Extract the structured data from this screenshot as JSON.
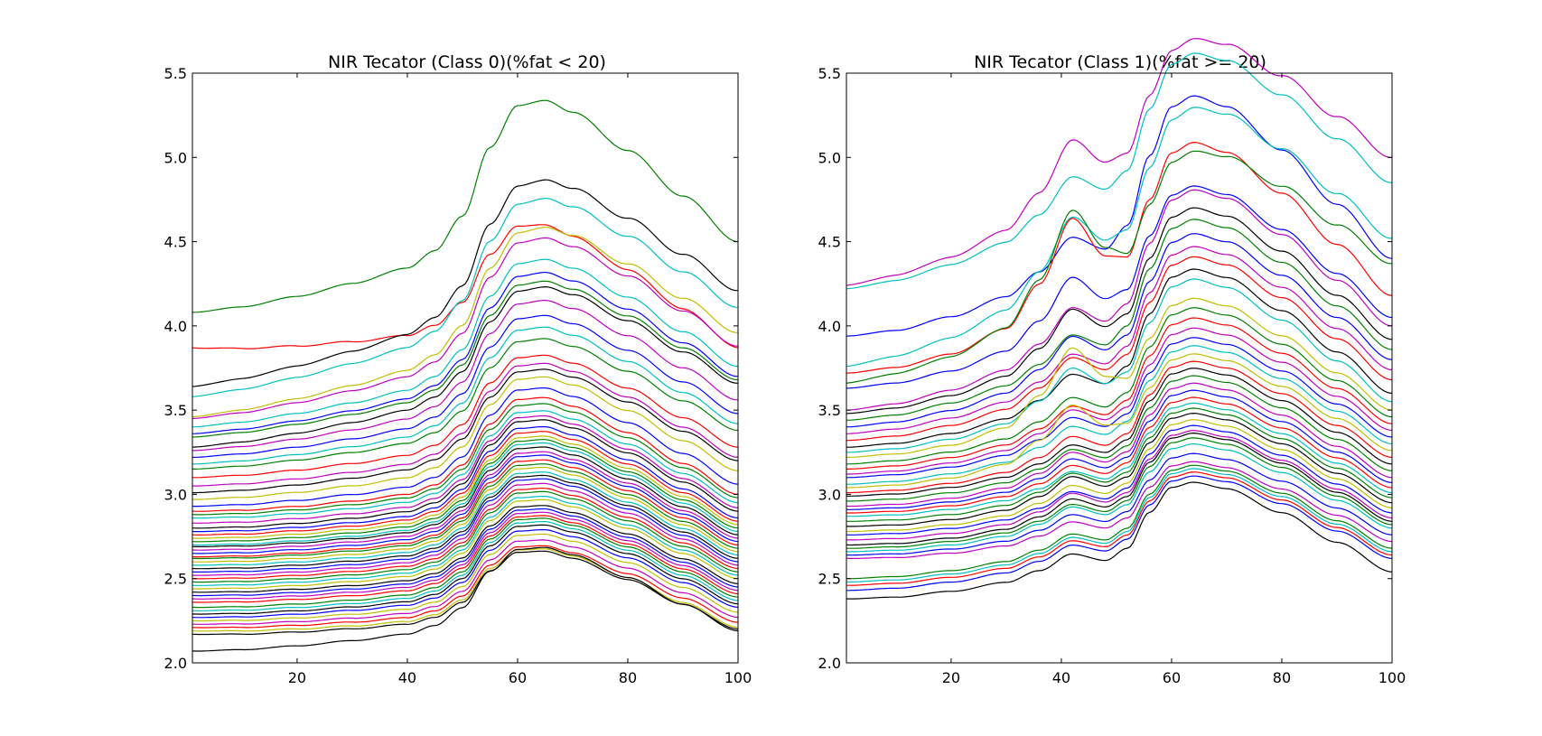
{
  "chart_data": [
    {
      "type": "line",
      "title": "NIR Tecator (Class 0)(%fat < 20)",
      "xlabel": "",
      "ylabel": "",
      "xlim": [
        1,
        100
      ],
      "ylim": [
        2.0,
        5.5
      ],
      "xticks": [
        "20",
        "40",
        "60",
        "80",
        "100"
      ],
      "yticks": [
        "2.0",
        "2.5",
        "3.0",
        "3.5",
        "4.0",
        "4.5",
        "5.0",
        "5.5"
      ],
      "grid": false,
      "legend": "none",
      "curve_shape": {
        "note": "absorbance spectra; each series follows same profile shape",
        "profile_x": [
          1,
          10,
          20,
          30,
          40,
          45,
          50,
          55,
          60,
          65,
          70,
          80,
          90,
          100
        ],
        "profile_rel": [
          0.0,
          0.02,
          0.06,
          0.11,
          0.17,
          0.24,
          0.38,
          0.66,
          0.83,
          0.85,
          0.8,
          0.64,
          0.45,
          0.26
        ]
      },
      "series": [
        {
          "start": 4.08,
          "peak": 5.31,
          "end": 4.5,
          "color": "#008000"
        },
        {
          "start": 3.87,
          "peak": 4.78,
          "end": 3.87,
          "color": "#ff0000"
        },
        {
          "start": 3.64,
          "peak": 4.71,
          "end": 4.21,
          "color": "#000000"
        },
        {
          "start": 3.58,
          "peak": 4.62,
          "end": 4.11,
          "color": "#00bfbf"
        },
        {
          "start": 3.46,
          "peak": 4.46,
          "end": 3.96,
          "color": "#bfbf00"
        },
        {
          "start": 3.45,
          "peak": 4.44,
          "end": 3.88,
          "color": "#bf00bf"
        },
        {
          "start": 3.4,
          "peak": 4.35,
          "end": 3.76,
          "color": "#00bfbf"
        },
        {
          "start": 3.36,
          "peak": 4.28,
          "end": 3.7,
          "color": "#0000ff"
        },
        {
          "start": 3.34,
          "peak": 4.22,
          "end": 3.68,
          "color": "#008000"
        },
        {
          "start": 3.28,
          "peak": 4.16,
          "end": 3.66,
          "color": "#000000"
        },
        {
          "start": 3.26,
          "peak": 4.13,
          "end": 3.56,
          "color": "#bf00bf"
        },
        {
          "start": 3.22,
          "peak": 4.06,
          "end": 3.48,
          "color": "#0000ff"
        },
        {
          "start": 3.18,
          "peak": 4.0,
          "end": 3.42,
          "color": "#00bfbf"
        },
        {
          "start": 3.15,
          "peak": 3.93,
          "end": 3.38,
          "color": "#008000"
        },
        {
          "start": 3.1,
          "peak": 3.86,
          "end": 3.28,
          "color": "#ff0000"
        },
        {
          "start": 3.05,
          "peak": 3.82,
          "end": 3.22,
          "color": "#bf00bf"
        },
        {
          "start": 3.01,
          "peak": 3.77,
          "end": 3.2,
          "color": "#000000"
        },
        {
          "start": 2.97,
          "peak": 3.74,
          "end": 3.14,
          "color": "#bfbf00"
        },
        {
          "start": 2.93,
          "peak": 3.7,
          "end": 3.06,
          "color": "#0000ff"
        },
        {
          "start": 2.9,
          "peak": 3.66,
          "end": 3.0,
          "color": "#ff0000"
        },
        {
          "start": 2.88,
          "peak": 3.62,
          "end": 2.98,
          "color": "#008000"
        },
        {
          "start": 2.86,
          "peak": 3.58,
          "end": 2.95,
          "color": "#00bfbf"
        },
        {
          "start": 2.83,
          "peak": 3.55,
          "end": 2.92,
          "color": "#bf00bf"
        },
        {
          "start": 2.8,
          "peak": 3.52,
          "end": 2.9,
          "color": "#000000"
        },
        {
          "start": 2.78,
          "peak": 3.49,
          "end": 2.86,
          "color": "#0000ff"
        },
        {
          "start": 2.76,
          "peak": 3.46,
          "end": 2.84,
          "color": "#ff0000"
        },
        {
          "start": 2.74,
          "peak": 3.43,
          "end": 2.82,
          "color": "#bfbf00"
        },
        {
          "start": 2.72,
          "peak": 3.41,
          "end": 2.8,
          "color": "#008000"
        },
        {
          "start": 2.7,
          "peak": 3.39,
          "end": 2.78,
          "color": "#00bfbf"
        },
        {
          "start": 2.69,
          "peak": 3.37,
          "end": 2.76,
          "color": "#000000"
        },
        {
          "start": 2.67,
          "peak": 3.34,
          "end": 2.74,
          "color": "#bf00bf"
        },
        {
          "start": 2.65,
          "peak": 3.32,
          "end": 2.72,
          "color": "#0000ff"
        },
        {
          "start": 2.63,
          "peak": 3.29,
          "end": 2.7,
          "color": "#ff0000"
        },
        {
          "start": 2.62,
          "peak": 3.27,
          "end": 2.68,
          "color": "#008000"
        },
        {
          "start": 2.6,
          "peak": 3.25,
          "end": 2.66,
          "color": "#bfbf00"
        },
        {
          "start": 2.58,
          "peak": 3.22,
          "end": 2.64,
          "color": "#00bfbf"
        },
        {
          "start": 2.56,
          "peak": 3.2,
          "end": 2.62,
          "color": "#000000"
        },
        {
          "start": 2.54,
          "peak": 3.18,
          "end": 2.6,
          "color": "#0000ff"
        },
        {
          "start": 2.52,
          "peak": 3.15,
          "end": 2.58,
          "color": "#bf00bf"
        },
        {
          "start": 2.5,
          "peak": 3.12,
          "end": 2.56,
          "color": "#ff0000"
        },
        {
          "start": 2.48,
          "peak": 3.1,
          "end": 2.54,
          "color": "#008000"
        },
        {
          "start": 2.46,
          "peak": 3.07,
          "end": 2.52,
          "color": "#00bfbf"
        },
        {
          "start": 2.44,
          "peak": 3.05,
          "end": 2.5,
          "color": "#bfbf00"
        },
        {
          "start": 2.42,
          "peak": 3.02,
          "end": 2.47,
          "color": "#000000"
        },
        {
          "start": 2.4,
          "peak": 3.0,
          "end": 2.45,
          "color": "#0000ff"
        },
        {
          "start": 2.38,
          "peak": 2.98,
          "end": 2.43,
          "color": "#bf00bf"
        },
        {
          "start": 2.36,
          "peak": 2.96,
          "end": 2.41,
          "color": "#ff0000"
        },
        {
          "start": 2.33,
          "peak": 2.94,
          "end": 2.39,
          "color": "#008000"
        },
        {
          "start": 2.31,
          "peak": 2.92,
          "end": 2.37,
          "color": "#00bfbf"
        },
        {
          "start": 2.29,
          "peak": 2.9,
          "end": 2.35,
          "color": "#000000"
        },
        {
          "start": 2.27,
          "peak": 2.87,
          "end": 2.33,
          "color": "#0000ff"
        },
        {
          "start": 2.25,
          "peak": 2.85,
          "end": 2.3,
          "color": "#bfbf00"
        },
        {
          "start": 2.23,
          "peak": 2.82,
          "end": 2.27,
          "color": "#bf00bf"
        },
        {
          "start": 2.21,
          "peak": 2.79,
          "end": 2.24,
          "color": "#ff0000"
        },
        {
          "start": 2.19,
          "peak": 2.78,
          "end": 2.21,
          "color": "#bfbf00"
        },
        {
          "start": 2.17,
          "peak": 2.76,
          "end": 2.2,
          "color": "#000000"
        },
        {
          "start": 2.07,
          "peak": 2.74,
          "end": 2.19,
          "color": "#000000"
        }
      ]
    },
    {
      "type": "line",
      "title": "NIR Tecator (Class 1)(%fat >= 20)",
      "xlabel": "",
      "ylabel": "",
      "xlim": [
        1,
        100
      ],
      "ylim": [
        2.0,
        5.5
      ],
      "xticks": [
        "20",
        "40",
        "60",
        "80",
        "100"
      ],
      "yticks": [
        "2.0",
        "2.5",
        "3.0",
        "3.5",
        "4.0",
        "4.5",
        "5.0",
        "5.5"
      ],
      "grid": false,
      "legend": "none",
      "curve_shape": {
        "note": "fat spectra with a bump near x=42 and broad peak near x=64",
        "profile_x": [
          1,
          10,
          20,
          30,
          36,
          42,
          48,
          52,
          56,
          60,
          64,
          70,
          80,
          90,
          100
        ],
        "profile_rel": [
          0.0,
          0.02,
          0.07,
          0.14,
          0.22,
          0.33,
          0.3,
          0.4,
          0.66,
          0.84,
          0.88,
          0.84,
          0.68,
          0.48,
          0.28
        ],
        "bump_weight": [
          0.0,
          0.0,
          0.0,
          0.1,
          0.45,
          1.0,
          0.55,
          0.15,
          0.0,
          0.0,
          0.0,
          0.0,
          0.0,
          0.0,
          0.0
        ]
      },
      "series": [
        {
          "start": 4.24,
          "peak": 5.47,
          "end": 5.0,
          "bump": 0.25,
          "color": "#bf00bf"
        },
        {
          "start": 4.22,
          "peak": 5.47,
          "end": 4.85,
          "bump": 0.1,
          "color": "#00bfbf"
        },
        {
          "start": 3.94,
          "peak": 5.36,
          "end": 4.4,
          "bump": 0.05,
          "color": "#0000ff"
        },
        {
          "start": 3.76,
          "peak": 5.08,
          "end": 4.52,
          "bump": 0.25,
          "color": "#00bfbf"
        },
        {
          "start": 3.72,
          "peak": 5.07,
          "end": 4.18,
          "bump": 0.4,
          "color": "#ff0000"
        },
        {
          "start": 3.66,
          "peak": 4.82,
          "end": 4.37,
          "bump": 0.45,
          "color": "#008000"
        },
        {
          "start": 3.63,
          "peak": 4.8,
          "end": 4.05,
          "bump": 0.2,
          "color": "#0000ff"
        },
        {
          "start": 3.5,
          "peak": 4.74,
          "end": 4.0,
          "bump": 0.1,
          "color": "#bf00bf"
        },
        {
          "start": 3.48,
          "peak": 4.66,
          "end": 3.92,
          "bump": 0.15,
          "color": "#000000"
        },
        {
          "start": 3.44,
          "peak": 4.6,
          "end": 3.86,
          "bump": 0.05,
          "color": "#008000"
        },
        {
          "start": 3.4,
          "peak": 4.52,
          "end": 3.8,
          "bump": 0.1,
          "color": "#0000ff"
        },
        {
          "start": 3.36,
          "peak": 4.45,
          "end": 3.74,
          "bump": 0.05,
          "color": "#bf00bf"
        },
        {
          "start": 3.32,
          "peak": 4.4,
          "end": 3.68,
          "bump": 0.08,
          "color": "#ff0000"
        },
        {
          "start": 3.28,
          "peak": 4.35,
          "end": 3.6,
          "bump": 0.04,
          "color": "#000000"
        },
        {
          "start": 3.25,
          "peak": 4.3,
          "end": 3.55,
          "bump": 0.12,
          "color": "#00bfbf"
        },
        {
          "start": 3.22,
          "peak": 4.18,
          "end": 3.5,
          "bump": 0.3,
          "color": "#bfbf00"
        },
        {
          "start": 3.18,
          "peak": 4.12,
          "end": 3.46,
          "bump": 0.05,
          "color": "#008000"
        },
        {
          "start": 3.15,
          "peak": 4.06,
          "end": 3.42,
          "bump": 0.04,
          "color": "#ff0000"
        },
        {
          "start": 3.12,
          "peak": 4.0,
          "end": 3.38,
          "bump": 0.06,
          "color": "#bf00bf"
        },
        {
          "start": 3.1,
          "peak": 3.95,
          "end": 3.34,
          "bump": 0.05,
          "color": "#0000ff"
        },
        {
          "start": 3.06,
          "peak": 3.9,
          "end": 3.3,
          "bump": 0.04,
          "color": "#00bfbf"
        },
        {
          "start": 3.04,
          "peak": 3.86,
          "end": 3.26,
          "bump": 0.2,
          "color": "#bfbf00"
        },
        {
          "start": 3.01,
          "peak": 3.82,
          "end": 3.22,
          "bump": 0.05,
          "color": "#ff0000"
        },
        {
          "start": 2.99,
          "peak": 3.79,
          "end": 3.18,
          "bump": 0.03,
          "color": "#000000"
        },
        {
          "start": 2.96,
          "peak": 3.75,
          "end": 3.14,
          "bump": 0.04,
          "color": "#008000"
        },
        {
          "start": 2.93,
          "peak": 3.71,
          "end": 3.1,
          "bump": 0.06,
          "color": "#bf00bf"
        },
        {
          "start": 2.91,
          "peak": 3.67,
          "end": 3.07,
          "bump": 0.05,
          "color": "#0000ff"
        },
        {
          "start": 2.89,
          "peak": 3.63,
          "end": 3.04,
          "bump": 0.04,
          "color": "#ff0000"
        },
        {
          "start": 2.87,
          "peak": 3.6,
          "end": 3.01,
          "bump": 0.03,
          "color": "#00bfbf"
        },
        {
          "start": 2.84,
          "peak": 3.57,
          "end": 2.98,
          "bump": 0.05,
          "color": "#008000"
        },
        {
          "start": 2.81,
          "peak": 3.54,
          "end": 2.95,
          "bump": 0.06,
          "color": "#000000"
        },
        {
          "start": 2.78,
          "peak": 3.5,
          "end": 2.92,
          "bump": 0.04,
          "color": "#bfbf00"
        },
        {
          "start": 2.76,
          "peak": 3.47,
          "end": 2.89,
          "bump": 0.03,
          "color": "#0000ff"
        },
        {
          "start": 2.73,
          "peak": 3.44,
          "end": 2.86,
          "bump": 0.05,
          "color": "#bf00bf"
        },
        {
          "start": 2.7,
          "peak": 3.42,
          "end": 2.84,
          "bump": 0.04,
          "color": "#000000"
        },
        {
          "start": 2.68,
          "peak": 3.39,
          "end": 2.82,
          "bump": 0.03,
          "color": "#008000"
        },
        {
          "start": 2.66,
          "peak": 3.35,
          "end": 2.8,
          "bump": 0.04,
          "color": "#00bfbf"
        },
        {
          "start": 2.64,
          "peak": 3.3,
          "end": 2.76,
          "bump": 0.03,
          "color": "#0000ff"
        },
        {
          "start": 2.62,
          "peak": 3.26,
          "end": 2.72,
          "bump": 0.02,
          "color": "#bf00bf"
        },
        {
          "start": 2.5,
          "peak": 3.2,
          "end": 2.68,
          "bump": 0.02,
          "color": "#008000"
        },
        {
          "start": 2.48,
          "peak": 3.18,
          "end": 2.66,
          "bump": 0.02,
          "color": "#00bfbf"
        },
        {
          "start": 2.46,
          "peak": 3.16,
          "end": 2.64,
          "bump": 0.02,
          "color": "#ff0000"
        },
        {
          "start": 2.43,
          "peak": 3.13,
          "end": 2.62,
          "bump": 0.02,
          "color": "#0000ff"
        },
        {
          "start": 2.38,
          "peak": 3.12,
          "end": 2.54,
          "bump": 0.02,
          "color": "#000000"
        }
      ]
    }
  ]
}
